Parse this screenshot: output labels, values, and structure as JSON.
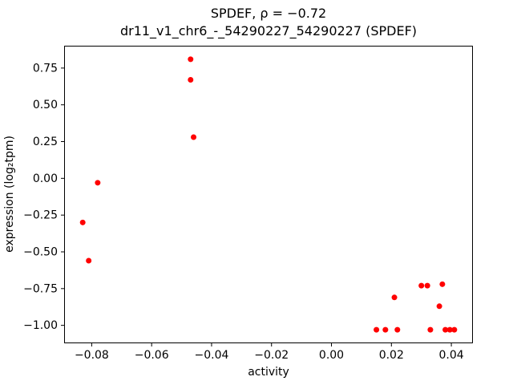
{
  "chart_data": {
    "type": "scatter",
    "title": "SPDEF, ρ = −0.72",
    "subtitle": "dr11_v1_chr6_-_54290227_54290227 (SPDEF)",
    "xlabel": "activity",
    "ylabel": "expression (log₂tpm)",
    "marker_color": "#ff0000",
    "marker_size_px": 3.5,
    "grid": false,
    "legend": null,
    "xlim": [
      -0.0892,
      0.0472
    ],
    "ylim": [
      -1.122,
      0.902
    ],
    "xticks": {
      "values": [
        -0.08,
        -0.06,
        -0.04,
        -0.02,
        0.0,
        0.02,
        0.04
      ],
      "labels": [
        "−0.08",
        "−0.06",
        "−0.04",
        "−0.02",
        "0.00",
        "0.02",
        "0.04"
      ]
    },
    "yticks": {
      "values": [
        0.75,
        0.5,
        0.25,
        0.0,
        -0.25,
        -0.5,
        -0.75,
        -1.0
      ],
      "labels": [
        "0.75",
        "0.50",
        "0.25",
        "0.00",
        "−0.25",
        "−0.50",
        "−0.75",
        "−1.00"
      ]
    },
    "points": [
      [
        -0.083,
        -0.3
      ],
      [
        -0.081,
        -0.56
      ],
      [
        -0.078,
        -0.03
      ],
      [
        -0.047,
        0.81
      ],
      [
        -0.047,
        0.67
      ],
      [
        -0.046,
        0.28
      ],
      [
        0.015,
        -1.03
      ],
      [
        0.018,
        -1.03
      ],
      [
        0.021,
        -0.81
      ],
      [
        0.022,
        -1.03
      ],
      [
        0.03,
        -0.73
      ],
      [
        0.032,
        -0.73
      ],
      [
        0.033,
        -1.03
      ],
      [
        0.036,
        -0.87
      ],
      [
        0.037,
        -0.72
      ],
      [
        0.038,
        -1.03
      ],
      [
        0.0395,
        -1.03
      ],
      [
        0.041,
        -1.03
      ]
    ]
  }
}
